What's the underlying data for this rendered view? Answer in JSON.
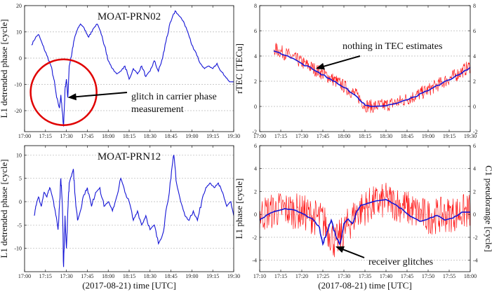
{
  "xlabel_left": "(2017-08-21) time [UTC]",
  "xlabel_right": "(2017-08-21) time [UTC]",
  "chart_data": [
    {
      "id": "p1",
      "type": "line",
      "title": "MOAT-PRN02",
      "ylabel": "L1 detrended phase [cycle]",
      "xlim": [
        "17:00",
        "19:30"
      ],
      "ylim": [
        -28,
        20
      ],
      "xticks": [
        "17:00",
        "17:15",
        "17:30",
        "17:45",
        "18:00",
        "18:15",
        "18:30",
        "18:45",
        "19:00",
        "19:15",
        "19:30"
      ],
      "yticks": [
        -20,
        -10,
        0,
        10,
        20
      ],
      "grid": "horizontal dashed",
      "series": [
        {
          "color": "#1515d6",
          "points": [
            [
              "17:05",
              5
            ],
            [
              "17:08",
              8
            ],
            [
              "17:10",
              9
            ],
            [
              "17:13",
              5
            ],
            [
              "17:16",
              1
            ],
            [
              "17:19",
              -3
            ],
            [
              "17:21",
              -8
            ],
            [
              "17:23",
              -15
            ],
            [
              "17:25",
              -19
            ],
            [
              "17:26",
              -14
            ],
            [
              "17:27",
              -20
            ],
            [
              "17:28",
              -26
            ],
            [
              "17:29",
              -12
            ],
            [
              "17:30",
              -8
            ],
            [
              "17:31",
              -15
            ],
            [
              "17:32",
              -3
            ],
            [
              "17:34",
              2
            ],
            [
              "17:36",
              8
            ],
            [
              "17:38",
              11
            ],
            [
              "17:40",
              13
            ],
            [
              "17:42",
              12
            ],
            [
              "17:44",
              10
            ],
            [
              "17:46",
              8
            ],
            [
              "17:49",
              11
            ],
            [
              "17:52",
              13
            ],
            [
              "17:55",
              9
            ],
            [
              "17:58",
              4
            ],
            [
              "18:00",
              -1
            ],
            [
              "18:03",
              -4
            ],
            [
              "18:06",
              -6
            ],
            [
              "18:09",
              -5
            ],
            [
              "18:12",
              -3
            ],
            [
              "18:15",
              -8
            ],
            [
              "18:18",
              -4
            ],
            [
              "18:21",
              -6
            ],
            [
              "18:24",
              -3
            ],
            [
              "18:27",
              -7
            ],
            [
              "18:30",
              -5
            ],
            [
              "18:33",
              -1
            ],
            [
              "18:36",
              -5
            ],
            [
              "18:39",
              0
            ],
            [
              "18:42",
              8
            ],
            [
              "18:45",
              14
            ],
            [
              "18:48",
              18
            ],
            [
              "18:51",
              16
            ],
            [
              "18:54",
              14
            ],
            [
              "18:57",
              10
            ],
            [
              "19:00",
              5
            ],
            [
              "19:03",
              2
            ],
            [
              "19:06",
              -2
            ],
            [
              "19:09",
              -4
            ],
            [
              "19:12",
              -3
            ],
            [
              "19:15",
              -4
            ],
            [
              "19:18",
              -2
            ],
            [
              "19:21",
              -5
            ],
            [
              "19:24",
              -7
            ],
            [
              "19:27",
              -9
            ],
            [
              "19:30",
              -9
            ]
          ]
        }
      ],
      "annotations": [
        {
          "text_lines": [
            "glitch in carrier phase",
            "measurement"
          ],
          "arrow_to": [
            "17:31",
            -15
          ],
          "circle_center": [
            "17:28",
            -13
          ],
          "circle_color": "#e00000"
        }
      ]
    },
    {
      "id": "p2",
      "type": "line",
      "title": "",
      "ylabel": "rTEC [TECu]",
      "xlim": [
        "17:00",
        "19:30"
      ],
      "ylim": [
        -2,
        8
      ],
      "xticks": [
        "17:00",
        "17:15",
        "17:30",
        "17:45",
        "18:00",
        "18:15",
        "18:30",
        "18:45",
        "19:00",
        "19:15",
        "19:30"
      ],
      "yticks": [
        -2,
        0,
        2,
        4,
        6,
        8
      ],
      "yticks_right": [
        -2,
        0,
        2,
        4,
        6,
        8
      ],
      "grid": "horizontal dashed",
      "series": [
        {
          "name": "",
          "color": "#ff0000",
          "role": "noisy",
          "noise": 0.55,
          "points": [
            [
              "17:10",
              4.6
            ],
            [
              "17:20",
              4.1
            ],
            [
              "17:30",
              3.5
            ],
            [
              "17:40",
              2.9
            ],
            [
              "17:50",
              2.3
            ],
            [
              "18:00",
              1.6
            ],
            [
              "18:10",
              0.8
            ],
            [
              "18:15",
              0.1
            ],
            [
              "18:20",
              0.0
            ],
            [
              "18:30",
              0.1
            ],
            [
              "18:40",
              0.4
            ],
            [
              "18:50",
              0.8
            ],
            [
              "19:00",
              1.3
            ],
            [
              "19:10",
              1.9
            ],
            [
              "19:20",
              2.5
            ],
            [
              "19:30",
              3.2
            ]
          ]
        },
        {
          "name": "",
          "color": "#1515d6",
          "role": "smooth",
          "points": [
            [
              "17:10",
              4.4
            ],
            [
              "17:20",
              4.0
            ],
            [
              "17:30",
              3.4
            ],
            [
              "17:40",
              2.8
            ],
            [
              "17:50",
              2.2
            ],
            [
              "18:00",
              1.5
            ],
            [
              "18:10",
              0.7
            ],
            [
              "18:15",
              0.1
            ],
            [
              "18:20",
              0.0
            ],
            [
              "18:30",
              0.05
            ],
            [
              "18:40",
              0.35
            ],
            [
              "18:50",
              0.75
            ],
            [
              "19:00",
              1.25
            ],
            [
              "19:10",
              1.85
            ],
            [
              "19:20",
              2.45
            ],
            [
              "19:30",
              3.1
            ]
          ]
        }
      ],
      "annotations": [
        {
          "text_lines": [
            "nothing in TEC estimates"
          ],
          "arrow_to": [
            "17:40",
            3.0
          ]
        }
      ]
    },
    {
      "id": "p3",
      "type": "line",
      "title": "MOAT-PRN12",
      "ylabel": "L1 detrended phase [cycle]",
      "xlim": [
        "17:00",
        "19:30"
      ],
      "ylim": [
        -15,
        12
      ],
      "xticks": [
        "17:00",
        "17:15",
        "17:30",
        "17:45",
        "18:00",
        "18:15",
        "18:30",
        "18:45",
        "19:00",
        "19:15",
        "19:30"
      ],
      "yticks": [
        -10,
        -5,
        0,
        5,
        10
      ],
      "grid": "horizontal dashed",
      "series": [
        {
          "color": "#1515d6",
          "points": [
            [
              "17:07",
              -3
            ],
            [
              "17:08",
              -1
            ],
            [
              "17:10",
              1
            ],
            [
              "17:12",
              -1
            ],
            [
              "17:14",
              2
            ],
            [
              "17:16",
              1
            ],
            [
              "17:18",
              3
            ],
            [
              "17:20",
              1
            ],
            [
              "17:22",
              -2
            ],
            [
              "17:24",
              -6
            ],
            [
              "17:25",
              -1
            ],
            [
              "17:26",
              5
            ],
            [
              "17:27",
              0
            ],
            [
              "17:28",
              -14
            ],
            [
              "17:29",
              -3
            ],
            [
              "17:30",
              -10
            ],
            [
              "17:31",
              -2
            ],
            [
              "17:32",
              4
            ],
            [
              "17:34",
              6
            ],
            [
              "17:35",
              7
            ],
            [
              "17:36",
              2
            ],
            [
              "17:38",
              -4
            ],
            [
              "17:40",
              -2
            ],
            [
              "17:42",
              1
            ],
            [
              "17:45",
              3
            ],
            [
              "17:48",
              -1
            ],
            [
              "17:51",
              2
            ],
            [
              "17:54",
              3
            ],
            [
              "17:57",
              -1
            ],
            [
              "18:00",
              0
            ],
            [
              "18:03",
              -2
            ],
            [
              "18:06",
              1
            ],
            [
              "18:09",
              5
            ],
            [
              "18:12",
              2
            ],
            [
              "18:15",
              0
            ],
            [
              "18:18",
              -4
            ],
            [
              "18:21",
              -2
            ],
            [
              "18:24",
              -5
            ],
            [
              "18:27",
              -3
            ],
            [
              "18:30",
              -6
            ],
            [
              "18:33",
              -5
            ],
            [
              "18:36",
              -9
            ],
            [
              "18:39",
              -7
            ],
            [
              "18:42",
              -1
            ],
            [
              "18:45",
              5
            ],
            [
              "18:47",
              10
            ],
            [
              "18:49",
              4
            ],
            [
              "18:52",
              0
            ],
            [
              "18:55",
              -3
            ],
            [
              "18:58",
              -4
            ],
            [
              "19:01",
              -2
            ],
            [
              "19:04",
              -4
            ],
            [
              "19:07",
              0
            ],
            [
              "19:10",
              3
            ],
            [
              "19:13",
              4
            ],
            [
              "19:16",
              3
            ],
            [
              "19:19",
              4
            ],
            [
              "19:22",
              2
            ],
            [
              "19:25",
              -1
            ],
            [
              "19:28",
              0
            ],
            [
              "19:30",
              -3
            ]
          ]
        }
      ]
    },
    {
      "id": "p4",
      "type": "line",
      "title": "",
      "ylabel": "L1 phase [cycle]",
      "ylabel_right": "C1 pseudorange [cycle]",
      "xlim": [
        "17:10",
        "18:00"
      ],
      "ylim": [
        -5,
        6
      ],
      "xticks": [
        "17:10",
        "17:15",
        "17:20",
        "17:25",
        "17:30",
        "17:35",
        "17:40",
        "17:45",
        "17:50",
        "17:55",
        "18:00"
      ],
      "yticks": [
        -4,
        -2,
        0,
        2,
        4,
        6
      ],
      "yticks_right": [
        -4,
        -2,
        0,
        2,
        4,
        6
      ],
      "grid": "horizontal dashed",
      "series": [
        {
          "name": "",
          "color": "#ff0000",
          "role": "noisy",
          "noise": 1.6,
          "points": [
            [
              "17:10",
              0.0
            ],
            [
              "17:15",
              0.5
            ],
            [
              "17:20",
              0.2
            ],
            [
              "17:25",
              -0.5
            ],
            [
              "17:28",
              -2.5
            ],
            [
              "17:30",
              -1.5
            ],
            [
              "17:33",
              0.2
            ],
            [
              "17:36",
              0.8
            ],
            [
              "17:40",
              1.2
            ],
            [
              "17:43",
              0.9
            ],
            [
              "17:47",
              0.2
            ],
            [
              "17:50",
              -0.2
            ],
            [
              "17:55",
              0.0
            ],
            [
              "18:00",
              0.3
            ]
          ]
        },
        {
          "name": "",
          "color": "#1515d6",
          "role": "smooth",
          "points": [
            [
              "17:10",
              -0.5
            ],
            [
              "17:12",
              0.0
            ],
            [
              "17:14",
              0.3
            ],
            [
              "17:16",
              0.5
            ],
            [
              "17:18",
              0.4
            ],
            [
              "17:20",
              0.1
            ],
            [
              "17:22",
              -0.3
            ],
            [
              "17:24",
              -1.0
            ],
            [
              "17:25",
              -2.6
            ],
            [
              "17:26",
              -1.5
            ],
            [
              "17:27",
              -0.5
            ],
            [
              "17:28",
              -1.8
            ],
            [
              "17:29",
              -2.6
            ],
            [
              "17:30",
              -0.8
            ],
            [
              "17:31",
              -0.4
            ],
            [
              "17:32",
              -0.8
            ],
            [
              "17:33",
              0.2
            ],
            [
              "17:34",
              0.8
            ],
            [
              "17:36",
              1.0
            ],
            [
              "17:38",
              1.2
            ],
            [
              "17:40",
              1.3
            ],
            [
              "17:42",
              0.9
            ],
            [
              "17:44",
              0.4
            ],
            [
              "17:46",
              -0.2
            ],
            [
              "17:48",
              -0.6
            ],
            [
              "17:50",
              -0.4
            ],
            [
              "17:52",
              -0.1
            ],
            [
              "17:54",
              -0.5
            ],
            [
              "17:56",
              -0.3
            ],
            [
              "17:58",
              0.2
            ],
            [
              "18:00",
              0.2
            ]
          ]
        }
      ],
      "annotations": [
        {
          "text_lines": [
            "receiver glitches"
          ],
          "arrow_to": [
            "17:28",
            -2.8
          ]
        }
      ]
    }
  ]
}
